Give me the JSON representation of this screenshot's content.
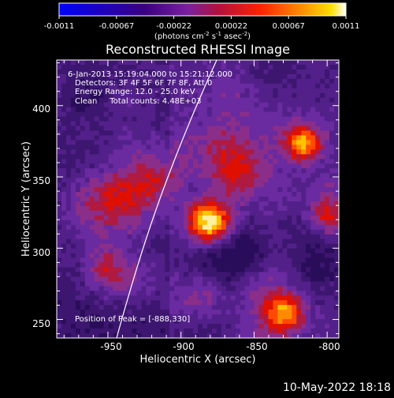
{
  "colorbar": {
    "ticks": [
      "-0.0011",
      "-0.00067",
      "-0.00022",
      "0.00022",
      "0.00067",
      "0.0011"
    ],
    "units_parts": [
      "(photons cm",
      "-2",
      " s",
      "-1",
      " asec",
      "-2",
      ")"
    ]
  },
  "image": {
    "title": "Reconstructed RHESSI Image",
    "overlay_lines": [
      "6-Jan-2013 15:19:04.000 to 15:21:12.000",
      "Detectors: 3F 4F 5F 6F 7F 8F, Att 0",
      "Energy Range: 12.0 - 25.0 keV",
      "Clean     Total counts: 4.48E+03"
    ],
    "peak_text": "Position of Peak = [-888,330]",
    "peak_position": [
      -888,
      330
    ]
  },
  "axes": {
    "xlabel": "Heliocentric X (arcsec)",
    "ylabel": "Heliocentric Y (arcsec)",
    "xrange": [
      -985,
      -792
    ],
    "yrange": [
      237,
      432
    ],
    "xticks": [
      "-950",
      "-900",
      "-850",
      "-800"
    ],
    "xtick_values": [
      -950,
      -900,
      -850,
      -800
    ],
    "yticks": [
      "250",
      "300",
      "350",
      "400"
    ],
    "ytick_values": [
      250,
      300,
      350,
      400
    ]
  },
  "footer": {
    "timestamp": "10-May-2022 18:18"
  },
  "colors": {
    "colormap": [
      "#0000ff",
      "#4b0082",
      "#6a1fb0",
      "#8b2a8a",
      "#ff0000",
      "#ff8000",
      "#ffd800",
      "#ffffff"
    ],
    "limb": "#ffffff",
    "text": "#ffffff",
    "background": "#000000"
  }
}
